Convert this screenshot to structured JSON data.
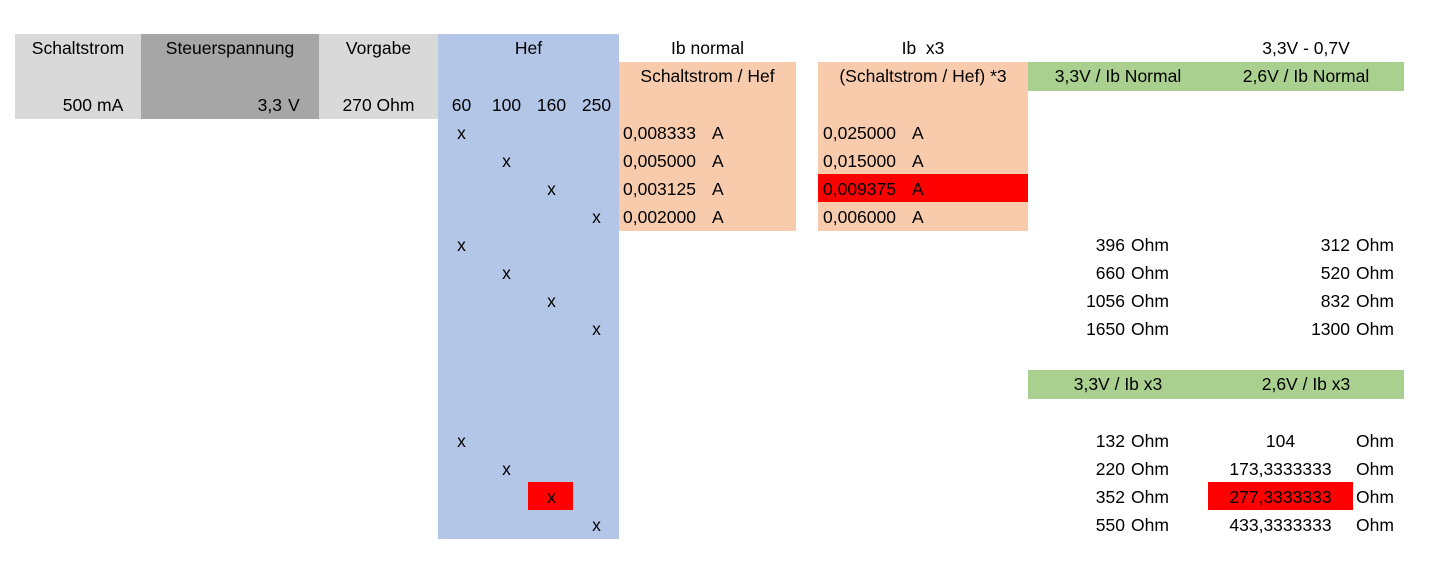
{
  "header": {
    "schaltstrom": "Schaltstrom",
    "steuerspannung": "Steuerspannung",
    "vorgabe": "Vorgabe",
    "hef": "Hef",
    "ib_normal": "Ib normal",
    "ib_x3": "Ib  x3",
    "spannungsabfall": "3,3V - 0,7V"
  },
  "subheader": {
    "schaltstrom_hef": "Schaltstrom / Hef",
    "schaltstrom_hef_x3": "(Schaltstrom / Hef) *3",
    "r33_normal": "3,3V / Ib Normal",
    "r26_normal": "2,6V / Ib Normal",
    "r33_x3": "3,3V / Ib x3",
    "r26_x3": "2,6V / Ib x3"
  },
  "inputs": {
    "schaltstrom_value": "500",
    "schaltstrom_unit": "mA",
    "steuerspannung_value": "3,3",
    "steuerspannung_unit": "V",
    "vorgabe": "270 Ohm"
  },
  "hef_values": [
    "60",
    "100",
    "160",
    "250"
  ],
  "mark": "x",
  "ib_normal": [
    {
      "value": "0,008333",
      "unit": "A"
    },
    {
      "value": "0,005000",
      "unit": "A"
    },
    {
      "value": "0,003125",
      "unit": "A"
    },
    {
      "value": "0,002000",
      "unit": "A"
    }
  ],
  "ib_x3": [
    {
      "value": "0,025000",
      "unit": "A"
    },
    {
      "value": "0,015000",
      "unit": "A"
    },
    {
      "value": "0,009375",
      "unit": "A",
      "highlight": true
    },
    {
      "value": "0,006000",
      "unit": "A"
    }
  ],
  "r_normal": [
    {
      "r33": "396",
      "r26": "312",
      "unit": "Ohm"
    },
    {
      "r33": "660",
      "r26": "520",
      "unit": "Ohm"
    },
    {
      "r33": "1056",
      "r26": "832",
      "unit": "Ohm"
    },
    {
      "r33": "1650",
      "r26": "1300",
      "unit": "Ohm"
    }
  ],
  "r_x3": [
    {
      "r33": "132",
      "r33_unit": "Ohm",
      "r26": "104",
      "r26_unit": "Ohm"
    },
    {
      "r33": "220",
      "r33_unit": "Ohm",
      "r26": "173,3333333",
      "r26_unit": "Ohm"
    },
    {
      "r33": "352",
      "r33_unit": "Ohm",
      "r26": "277,3333333",
      "r26_unit": "Ohm",
      "highlight": true
    },
    {
      "r33": "550",
      "r33_unit": "Ohm",
      "r26": "433,3333333",
      "r26_unit": "Ohm"
    }
  ],
  "colors": {
    "light_gray": "#d9d9d9",
    "dark_gray": "#a6a6a6",
    "blue": "#b4c6e7",
    "peach": "#f8cbad",
    "green": "#a9d08e",
    "red": "#ff0000"
  }
}
